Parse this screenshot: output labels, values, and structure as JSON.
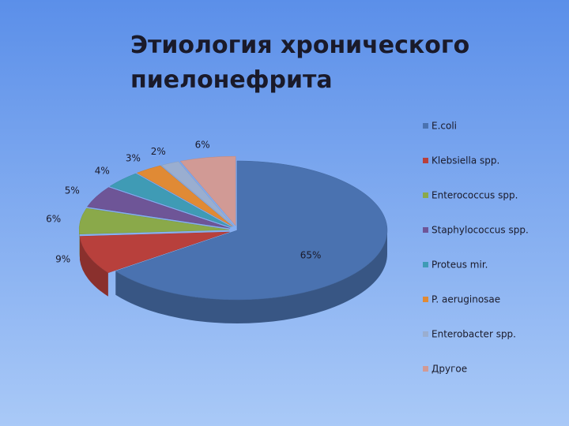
{
  "chart_data": {
    "type": "pie",
    "title": "Этиология хронического пиелонефрита",
    "categories": [
      "E.coli",
      "Klebsiella spp.",
      "Enterococcus spp.",
      "Staphylococcus spp.",
      "Proteus mir.",
      "P. aeruginosae",
      "Enterobacter spp.",
      "Другое"
    ],
    "values": [
      65,
      9,
      6,
      5,
      4,
      3,
      2,
      6
    ],
    "value_labels": [
      "65%",
      "9%",
      "6%",
      "5%",
      "4%",
      "3%",
      "2%",
      "6%"
    ],
    "colors": [
      "#4a72b0",
      "#b8403c",
      "#8aa94a",
      "#6e5597",
      "#3f9bb5",
      "#e08a35",
      "#9aaed0",
      "#d19a95"
    ],
    "legend": "right"
  }
}
